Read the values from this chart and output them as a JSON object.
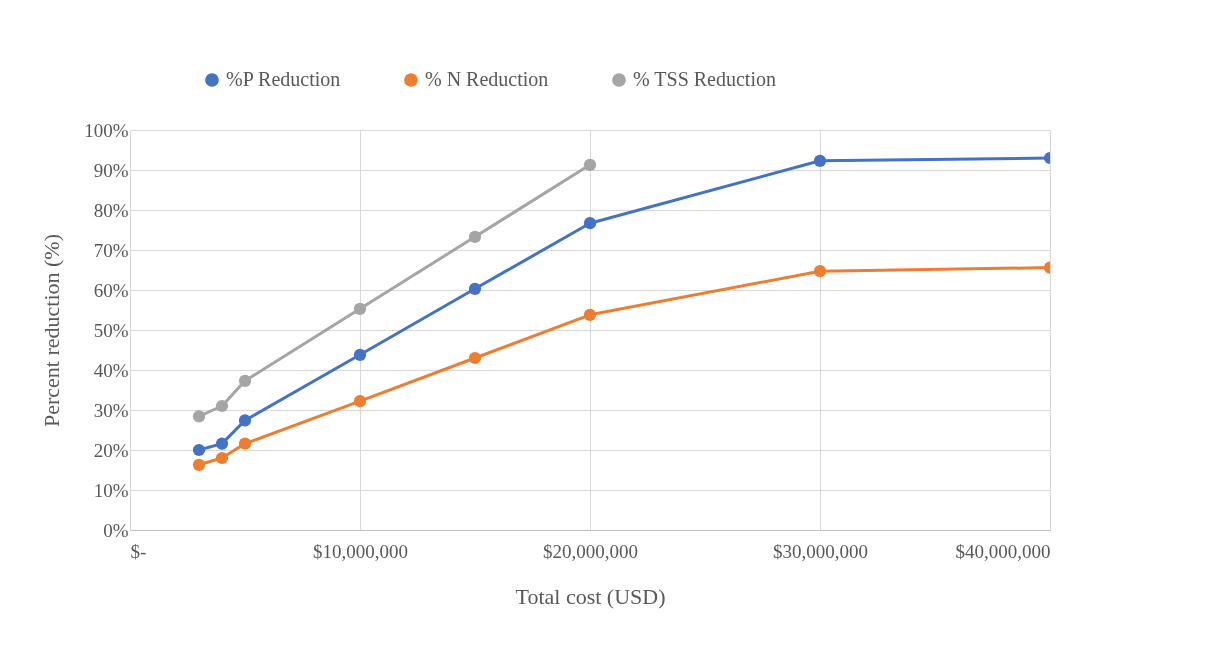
{
  "chart_data": {
    "type": "line",
    "xlabel": "Total cost (USD)",
    "ylabel": "Percent reduction (%)",
    "x": [
      3000000,
      4000000,
      5000000,
      10000000,
      15000000,
      20000000,
      30000000,
      40000000
    ],
    "series": [
      {
        "name": "%P Reduction",
        "color": "#4472c4",
        "values": [
          20.0,
          21.6,
          27.4,
          43.8,
          60.3,
          76.7,
          92.3,
          93.0
        ]
      },
      {
        "name": "% N Reduction",
        "color": "#ed7d31",
        "values": [
          16.3,
          18.0,
          21.6,
          32.2,
          43.0,
          53.8,
          64.7,
          65.6
        ]
      },
      {
        "name": "% TSS Reduction",
        "color": "#a5a5a5",
        "values": [
          28.4,
          31.0,
          37.3,
          55.3,
          73.3,
          91.3,
          null,
          null
        ]
      }
    ],
    "xlim": [
      0,
      40000000
    ],
    "xticks": [
      {
        "value": 0,
        "label": "$-"
      },
      {
        "value": 10000000,
        "label": "$10,000,000"
      },
      {
        "value": 20000000,
        "label": "$20,000,000"
      },
      {
        "value": 30000000,
        "label": "$30,000,000"
      },
      {
        "value": 40000000,
        "label": "$40,000,000"
      }
    ],
    "ylim": [
      0,
      100
    ],
    "yticks": [
      {
        "value": 0,
        "label": "0%"
      },
      {
        "value": 10,
        "label": "10%"
      },
      {
        "value": 20,
        "label": "20%"
      },
      {
        "value": 30,
        "label": "30%"
      },
      {
        "value": 40,
        "label": "40%"
      },
      {
        "value": 50,
        "label": "50%"
      },
      {
        "value": 60,
        "label": "60%"
      },
      {
        "value": 70,
        "label": "70%"
      },
      {
        "value": 80,
        "label": "80%"
      },
      {
        "value": 90,
        "label": "90%"
      },
      {
        "value": 100,
        "label": "100%"
      }
    ],
    "grid": true,
    "legend": "top",
    "marker": "circle",
    "line_style": "solid"
  }
}
